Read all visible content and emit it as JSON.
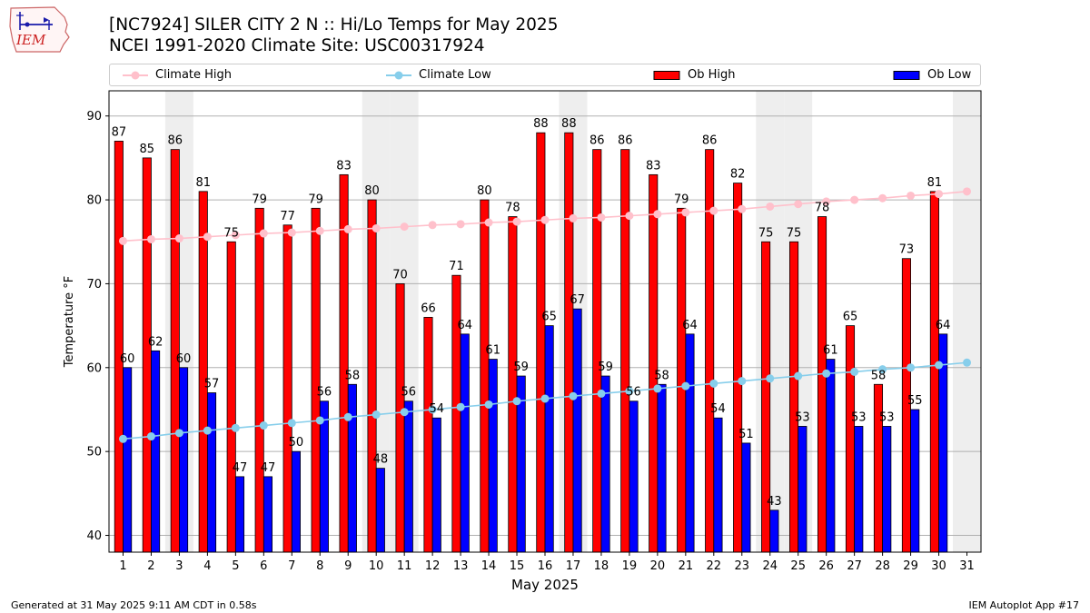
{
  "header": {
    "title_line1": "[NC7924] SILER CITY 2 N :: Hi/Lo Temps for May 2025",
    "title_line2": "NCEI 1991-2020 Climate Site: USC00317924",
    "logo_text": "IEM"
  },
  "footer": {
    "generated": "Generated at 31 May 2025 9:11 AM CDT in 0.58s",
    "app": "IEM Autoplot App #17"
  },
  "legend": {
    "climate_high": "Climate High",
    "climate_low": "Climate Low",
    "ob_high": "Ob High",
    "ob_low": "Ob Low"
  },
  "colors": {
    "ob_high": "#ff0000",
    "ob_low": "#0000ff",
    "climate_high": "#ffc0cb",
    "climate_low": "#87ceeb",
    "weekend_shade": "#eeeeee",
    "grid": "#b0b0b0"
  },
  "chart_data": {
    "type": "bar",
    "title": "[NC7924] SILER CITY 2 N :: Hi/Lo Temps for May 2025",
    "subtitle": "NCEI 1991-2020 Climate Site: USC00317924",
    "xlabel": "May 2025",
    "ylabel": "Temperature °F",
    "ylim": [
      38,
      93
    ],
    "yticks": [
      40,
      50,
      60,
      70,
      80,
      90
    ],
    "grid": true,
    "legend_position": "top",
    "categories": [
      "1",
      "2",
      "3",
      "4",
      "5",
      "6",
      "7",
      "8",
      "9",
      "10",
      "11",
      "12",
      "13",
      "14",
      "15",
      "16",
      "17",
      "18",
      "19",
      "20",
      "21",
      "22",
      "23",
      "24",
      "25",
      "26",
      "27",
      "28",
      "29",
      "30",
      "31"
    ],
    "shaded_days": [
      3,
      10,
      11,
      17,
      24,
      25,
      31
    ],
    "series": [
      {
        "name": "Ob High",
        "kind": "bar",
        "values": [
          87,
          85,
          86,
          81,
          75,
          79,
          77,
          79,
          83,
          80,
          70,
          66,
          71,
          80,
          78,
          88,
          88,
          86,
          86,
          83,
          79,
          86,
          82,
          75,
          75,
          78,
          65,
          58,
          73,
          81,
          null
        ]
      },
      {
        "name": "Ob Low",
        "kind": "bar",
        "values": [
          60,
          62,
          60,
          57,
          47,
          47,
          50,
          56,
          58,
          48,
          56,
          54,
          64,
          61,
          59,
          65,
          67,
          59,
          56,
          58,
          64,
          54,
          51,
          43,
          53,
          61,
          53,
          53,
          55,
          64,
          null
        ]
      },
      {
        "name": "Climate High",
        "kind": "line",
        "values": [
          75.1,
          75.3,
          75.4,
          75.6,
          75.8,
          76.0,
          76.1,
          76.3,
          76.5,
          76.6,
          76.8,
          77.0,
          77.1,
          77.3,
          77.4,
          77.6,
          77.8,
          77.9,
          78.1,
          78.3,
          78.5,
          78.7,
          78.9,
          79.2,
          79.5,
          79.8,
          80.0,
          80.2,
          80.5,
          80.7,
          81.0
        ]
      },
      {
        "name": "Climate Low",
        "kind": "line",
        "values": [
          51.5,
          51.8,
          52.2,
          52.5,
          52.8,
          53.1,
          53.4,
          53.7,
          54.1,
          54.4,
          54.7,
          55.0,
          55.3,
          55.6,
          56.0,
          56.3,
          56.6,
          56.9,
          57.2,
          57.5,
          57.8,
          58.1,
          58.4,
          58.7,
          59.0,
          59.3,
          59.5,
          59.8,
          60.0,
          60.3,
          60.6
        ]
      }
    ]
  }
}
